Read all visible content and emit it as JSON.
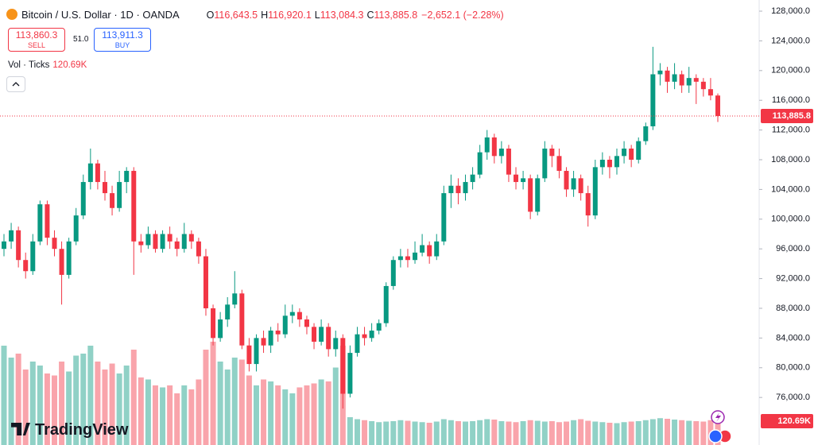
{
  "header": {
    "symbol": "Bitcoin / U.S. Dollar · 1D · OANDA",
    "ohlc": [
      {
        "key": "O",
        "value": "116,643.5"
      },
      {
        "key": "H",
        "value": "116,920.1"
      },
      {
        "key": "L",
        "value": "113,084.3"
      },
      {
        "key": "C",
        "value": "113,885.8"
      }
    ],
    "change": "−2,652.1 (−2.28%)",
    "sell": {
      "price": "113,860.3",
      "label": "SELL"
    },
    "spread": "51.0",
    "buy": {
      "price": "113,911.3",
      "label": "BUY"
    },
    "volume_legend": {
      "label": "Vol · Ticks",
      "value": "120.69K"
    },
    "logo": "TradingView"
  },
  "chart_data": {
    "type": "candlestick",
    "up_color": "#089981",
    "down_color": "#f23645",
    "ylim": [
      69600,
      129500
    ],
    "yticks": [
      {
        "value": 76000,
        "label": "76,000.0"
      },
      {
        "value": 80000,
        "label": "80,000.0"
      },
      {
        "value": 84000,
        "label": "84,000.0"
      },
      {
        "value": 88000,
        "label": "88,000.0"
      },
      {
        "value": 92000,
        "label": "92,000.0"
      },
      {
        "value": 96000,
        "label": "96,000.0"
      },
      {
        "value": 100000,
        "label": "100,000.0"
      },
      {
        "value": 104000,
        "label": "104,000.0"
      },
      {
        "value": 108000,
        "label": "108,000.0"
      },
      {
        "value": 112000,
        "label": "112,000.0"
      },
      {
        "value": 116000,
        "label": "116,000.0"
      },
      {
        "value": 120000,
        "label": "120,000.0"
      },
      {
        "value": 124000,
        "label": "124,000.0"
      },
      {
        "value": 128000,
        "label": "128,000.0"
      }
    ],
    "vlim": [
      0,
      2240
    ],
    "grid": false,
    "last_label": "113,885.8",
    "volume_last_label": "120.69K",
    "open": [
      96000,
      97000,
      98500,
      94500,
      93000,
      97000,
      102000,
      97500,
      96000,
      92500,
      97000,
      100500,
      105000,
      107500,
      105000,
      103500,
      101500,
      105000,
      106500,
      97000,
      96500,
      98000,
      96000,
      98000,
      97000,
      96000,
      98000,
      97000,
      95000,
      88000,
      84000,
      86500,
      88500,
      90000,
      83000,
      80500,
      84000,
      83000,
      85000,
      84500,
      87000,
      87500,
      86500,
      85500,
      83500,
      85500,
      82500,
      84000,
      76500,
      82000,
      84500,
      84000,
      85000,
      86000,
      91000,
      94500,
      95000,
      94500,
      95500,
      96500,
      95000,
      97000,
      103500,
      104500,
      103500,
      105000,
      106000,
      109000,
      111000,
      108500,
      109500,
      106000,
      105000,
      105500,
      101000,
      105500,
      109500,
      108500,
      106500,
      104000,
      105500,
      103500,
      100500,
      107000,
      108000,
      107000,
      108500,
      109500,
      108000,
      110500,
      112500,
      119500,
      120000,
      118500,
      119500,
      118000,
      119000,
      118500,
      117500,
      116643.5
    ],
    "high": [
      98000,
      99500,
      99000,
      95500,
      98000,
      102500,
      102500,
      98500,
      97000,
      97500,
      101500,
      106000,
      109500,
      108000,
      106500,
      104500,
      106500,
      107000,
      107000,
      98000,
      99000,
      98500,
      98500,
      99000,
      97500,
      99500,
      98500,
      97500,
      96000,
      88500,
      87500,
      89500,
      93000,
      90500,
      84000,
      84500,
      85000,
      85500,
      86000,
      88500,
      88500,
      88000,
      87000,
      86000,
      86500,
      86000,
      85000,
      84500,
      83000,
      85500,
      85500,
      86000,
      86500,
      91500,
      95000,
      96000,
      96000,
      97000,
      98000,
      97000,
      98000,
      104500,
      106000,
      105500,
      106000,
      107000,
      110000,
      112000,
      111500,
      110500,
      110000,
      107000,
      106500,
      106000,
      106000,
      110500,
      110000,
      109500,
      107000,
      106500,
      106000,
      104500,
      108000,
      109000,
      108500,
      109500,
      110500,
      110000,
      111000,
      113000,
      123200,
      121000,
      120500,
      121000,
      120000,
      120500,
      119500,
      119000,
      119000,
      116920.1
    ],
    "low": [
      95000,
      96000,
      93500,
      92000,
      92500,
      96500,
      96500,
      95000,
      88500,
      92000,
      96500,
      100000,
      104000,
      104000,
      102500,
      100500,
      101000,
      103500,
      92500,
      95500,
      96000,
      95500,
      95500,
      96000,
      95000,
      95500,
      96000,
      94000,
      87000,
      83000,
      83500,
      85500,
      88000,
      82500,
      79500,
      79500,
      82000,
      82000,
      83500,
      84000,
      86000,
      85500,
      84500,
      82500,
      83000,
      81500,
      81500,
      74500,
      76000,
      81500,
      83000,
      83500,
      84500,
      85500,
      90500,
      93500,
      93500,
      94000,
      95000,
      94000,
      94500,
      96500,
      101500,
      102000,
      102500,
      104000,
      105500,
      108000,
      107500,
      107500,
      105000,
      104000,
      104000,
      100000,
      100500,
      105000,
      107000,
      105500,
      103000,
      103000,
      102500,
      99000,
      100000,
      106000,
      105500,
      106000,
      107500,
      107000,
      107500,
      110000,
      112000,
      118000,
      117000,
      117500,
      117000,
      117000,
      115500,
      116500,
      116000,
      113084.3
    ],
    "close": [
      97000,
      98500,
      94500,
      93000,
      97000,
      102000,
      97500,
      96000,
      92500,
      97000,
      100500,
      105000,
      107500,
      105000,
      103500,
      101500,
      105000,
      106500,
      97000,
      96500,
      98000,
      96000,
      98000,
      97000,
      96000,
      98000,
      97000,
      95000,
      88000,
      84000,
      86500,
      88500,
      90000,
      83000,
      80500,
      84000,
      83000,
      85000,
      84500,
      87000,
      87500,
      86500,
      85500,
      83500,
      85500,
      82500,
      84000,
      76500,
      82000,
      84500,
      84000,
      85000,
      86000,
      91000,
      94500,
      95000,
      94500,
      95500,
      96500,
      95000,
      97000,
      103500,
      104500,
      103500,
      105000,
      106000,
      109000,
      111000,
      108500,
      109500,
      106000,
      105000,
      105500,
      101000,
      105500,
      109500,
      108500,
      106500,
      104000,
      105500,
      103500,
      100500,
      107000,
      108000,
      107000,
      108500,
      109500,
      108000,
      110500,
      112500,
      119500,
      120000,
      118500,
      119500,
      118000,
      119000,
      118500,
      117500,
      116643.5,
      113885.8
    ],
    "volume": [
      500,
      440,
      460,
      380,
      420,
      400,
      360,
      350,
      420,
      370,
      450,
      460,
      500,
      420,
      380,
      410,
      360,
      400,
      480,
      340,
      330,
      300,
      290,
      300,
      260,
      300,
      280,
      330,
      480,
      520,
      420,
      380,
      440,
      430,
      350,
      300,
      330,
      320,
      300,
      280,
      260,
      290,
      300,
      310,
      330,
      320,
      390,
      500,
      140,
      130,
      125,
      120,
      115,
      118,
      120,
      125,
      122,
      118,
      115,
      112,
      118,
      130,
      125,
      120,
      118,
      120,
      125,
      130,
      128,
      120,
      118,
      115,
      120,
      125,
      122,
      118,
      120,
      115,
      118,
      125,
      130,
      122,
      118,
      115,
      112,
      110,
      115,
      118,
      120,
      125,
      130,
      135,
      132,
      128,
      125,
      122,
      120,
      118,
      125,
      120.69
    ]
  }
}
